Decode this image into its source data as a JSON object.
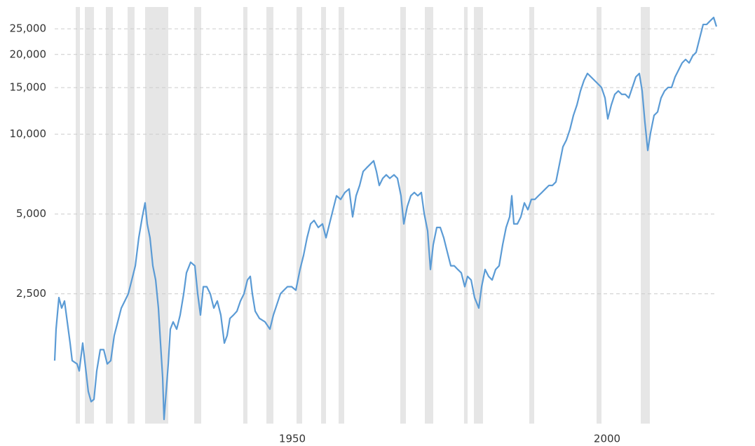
{
  "chart_data": {
    "type": "line",
    "yscale": "log",
    "grid": true,
    "color": "#5b9bd5",
    "shade_color": "#e6e6e6",
    "xlim": [
      1912.25,
      2017.37
    ],
    "ylim": [
      810,
      30200
    ],
    "xticks": [
      1950,
      2000
    ],
    "yticks": [
      {
        "value": 2500,
        "label": "2,500"
      },
      {
        "value": 5000,
        "label": "5,000"
      },
      {
        "value": 10000,
        "label": "10,000"
      },
      {
        "value": 15000,
        "label": "15,000"
      },
      {
        "value": 20000,
        "label": "20,000"
      },
      {
        "value": 25000,
        "label": "25,000"
      }
    ],
    "shaded_periods": [
      [
        1915.59,
        1916.26
      ],
      [
        1917.04,
        1918.49
      ],
      [
        1920.38,
        1921.49
      ],
      [
        1923.83,
        1924.94
      ],
      [
        1926.61,
        1930.29
      ],
      [
        1934.41,
        1935.52
      ],
      [
        1942.2,
        1942.87
      ],
      [
        1945.88,
        1946.99
      ],
      [
        1950.67,
        1951.56
      ],
      [
        1954.57,
        1955.35
      ],
      [
        1957.35,
        1958.24
      ],
      [
        1967.15,
        1968.04
      ],
      [
        1971.05,
        1972.38
      ],
      [
        1977.28,
        1977.84
      ],
      [
        1978.84,
        1980.29
      ],
      [
        1987.64,
        1988.42
      ],
      [
        1998.33,
        1999.11
      ],
      [
        2005.35,
        2006.79
      ]
    ],
    "x": [
      1912.25,
      1912.47,
      1912.92,
      1913.36,
      1913.81,
      1914.25,
      1914.7,
      1915.03,
      1915.81,
      1916.15,
      1916.7,
      1917.15,
      1917.59,
      1918.04,
      1918.49,
      1918.93,
      1919.49,
      1920.04,
      1920.6,
      1921.16,
      1921.71,
      1922.27,
      1922.83,
      1923.39,
      1923.94,
      1924.5,
      1925.06,
      1925.61,
      1926.17,
      1926.61,
      1926.95,
      1927.39,
      1927.84,
      1928.29,
      1928.73,
      1929.06,
      1929.4,
      1929.62,
      1929.96,
      1930.29,
      1930.62,
      1931.07,
      1931.63,
      1932.18,
      1932.74,
      1933.18,
      1933.85,
      1934.52,
      1934.97,
      1935.41,
      1935.86,
      1936.41,
      1936.97,
      1937.53,
      1938.08,
      1938.64,
      1939.2,
      1939.64,
      1940.09,
      1940.65,
      1941.2,
      1941.76,
      1942.32,
      1942.87,
      1943.32,
      1943.65,
      1944.1,
      1944.77,
      1945.66,
      1946.44,
      1946.99,
      1947.55,
      1948.11,
      1948.66,
      1949.22,
      1949.89,
      1950.56,
      1951.22,
      1951.78,
      1952.34,
      1952.9,
      1953.45,
      1954.12,
      1954.79,
      1955.35,
      1955.9,
      1956.46,
      1957.02,
      1957.68,
      1958.35,
      1959.02,
      1959.58,
      1960.13,
      1960.69,
      1961.25,
      1961.8,
      1962.36,
      1962.92,
      1963.36,
      1963.81,
      1964.37,
      1964.92,
      1965.48,
      1966.15,
      1966.7,
      1967.26,
      1967.71,
      1968.26,
      1968.82,
      1969.38,
      1969.93,
      1970.49,
      1970.94,
      1971.49,
      1971.94,
      1972.38,
      1972.94,
      1973.5,
      1974.05,
      1974.61,
      1975.17,
      1975.72,
      1976.28,
      1976.84,
      1977.39,
      1977.84,
      1978.4,
      1978.95,
      1979.62,
      1980.07,
      1980.62,
      1981.18,
      1981.74,
      1982.29,
      1982.85,
      1983.41,
      1983.96,
      1984.52,
      1984.86,
      1985.19,
      1985.75,
      1986.3,
      1986.86,
      1987.42,
      1987.97,
      1988.53,
      1989.09,
      1989.64,
      1990.2,
      1990.76,
      1991.31,
      1991.87,
      1992.43,
      1992.98,
      1993.54,
      1994.1,
      1994.65,
      1995.21,
      1995.77,
      1996.33,
      1996.88,
      1997.44,
      1998.0,
      1998.55,
      1999.11,
      1999.67,
      2000.11,
      2000.67,
      2001.22,
      2001.78,
      2002.34,
      2002.9,
      2003.45,
      2004.01,
      2004.57,
      2005.12,
      2005.57,
      2006.01,
      2006.46,
      2006.9,
      2007.46,
      2008.02,
      2008.57,
      2009.13,
      2009.69,
      2010.24,
      2010.8,
      2011.36,
      2011.92,
      2012.47,
      2013.03,
      2013.59,
      2014.14,
      2014.7,
      2015.26,
      2015.81,
      2016.37,
      2016.93,
      2017.37
    ],
    "values": [
      1400,
      1840,
      2420,
      2210,
      2350,
      1960,
      1630,
      1400,
      1360,
      1280,
      1630,
      1320,
      1070,
      980,
      1000,
      1280,
      1540,
      1540,
      1360,
      1400,
      1740,
      1960,
      2210,
      2350,
      2500,
      2820,
      3190,
      4070,
      4880,
      5510,
      4590,
      4070,
      3190,
      2820,
      2210,
      1630,
      1210,
      840,
      1070,
      1360,
      1840,
      1960,
      1840,
      2080,
      2500,
      3000,
      3290,
      3190,
      2500,
      2080,
      2660,
      2660,
      2500,
      2210,
      2350,
      2080,
      1630,
      1740,
      2020,
      2080,
      2150,
      2350,
      2500,
      2820,
      2910,
      2500,
      2150,
      2020,
      1960,
      1840,
      2080,
      2280,
      2500,
      2580,
      2660,
      2660,
      2580,
      3090,
      3490,
      4070,
      4590,
      4730,
      4450,
      4590,
      4070,
      4590,
      5190,
      5860,
      5680,
      6030,
      6220,
      4880,
      5860,
      6410,
      7240,
      7470,
      7700,
      7940,
      7240,
      6410,
      6820,
      7030,
      6820,
      7030,
      6820,
      5860,
      4590,
      5340,
      5860,
      6030,
      5860,
      6030,
      5030,
      4320,
      3090,
      3830,
      4450,
      4450,
      4070,
      3600,
      3190,
      3190,
      3090,
      3000,
      2660,
      2910,
      2820,
      2420,
      2210,
      2660,
      3090,
      2910,
      2820,
      3090,
      3190,
      3830,
      4450,
      4880,
      5860,
      4590,
      4590,
      4880,
      5510,
      5190,
      5680,
      5680,
      5860,
      6030,
      6220,
      6410,
      6410,
      6610,
      7700,
      8960,
      9520,
      10430,
      11780,
      12900,
      14570,
      15960,
      16960,
      16450,
      15960,
      15490,
      15020,
      13710,
      11430,
      12900,
      14140,
      14570,
      14140,
      14140,
      13710,
      15020,
      16450,
      16960,
      14570,
      11080,
      8690,
      10120,
      11780,
      12140,
      13710,
      14570,
      15020,
      15020,
      16450,
      17480,
      18580,
      19150,
      18580,
      19750,
      20360,
      23000,
      25950,
      25950,
      26770,
      27580,
      25490
    ]
  }
}
